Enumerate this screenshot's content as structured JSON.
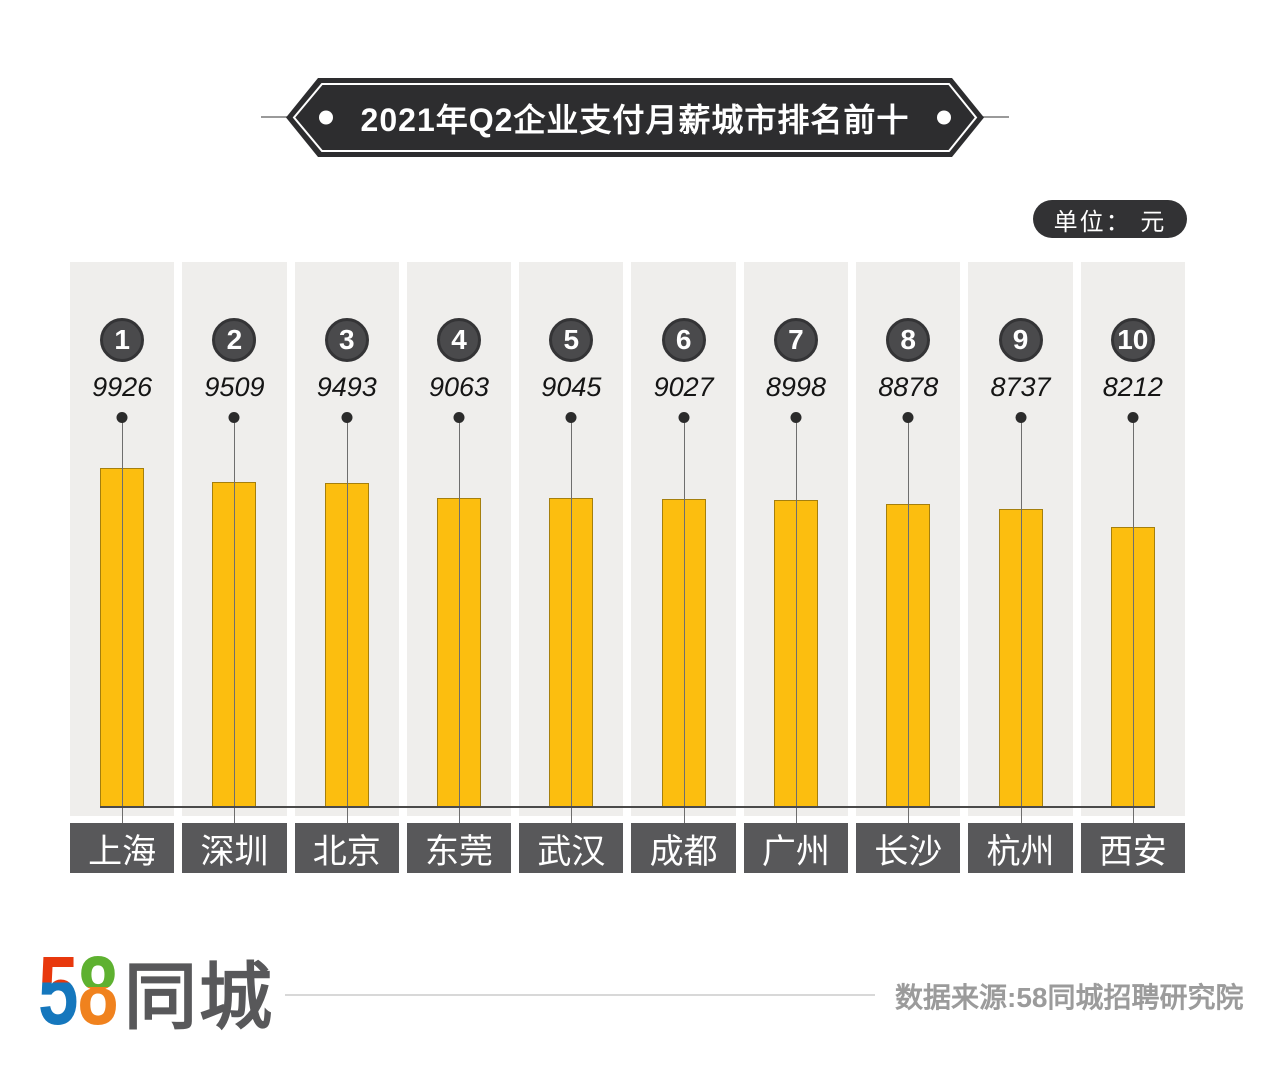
{
  "title": {
    "text": "2021年Q2企业支付月薪城市排名前十"
  },
  "unit_badge": {
    "text": "单位： 元"
  },
  "chart_data": {
    "type": "bar",
    "title": "2021年Q2企业支付月薪城市排名前十",
    "unit": "元",
    "categories": [
      "上海",
      "深圳",
      "北京",
      "东莞",
      "武汉",
      "成都",
      "广州",
      "长沙",
      "杭州",
      "西安"
    ],
    "ranks": [
      1,
      2,
      3,
      4,
      5,
      6,
      7,
      8,
      9,
      10
    ],
    "values": [
      9926,
      9509,
      9493,
      9063,
      9045,
      9027,
      8998,
      8878,
      8737,
      8212
    ],
    "ylim": [
      0,
      9926
    ],
    "legend": "none",
    "grid": false,
    "bar_color": "#FCBE0F",
    "panel_color": "#EFEEEC",
    "label_box_color": "#58585A",
    "rank_circle_color": "#4A4A4C",
    "baseline_color": "#4A4A4A"
  },
  "footer": {
    "logo_digit_5": "5",
    "logo_digit_8": "8",
    "logo_suffix": "同城",
    "source": "数据来源:58同城招聘研究院",
    "logo_colors": {
      "five_top": "#E8380D",
      "five_bottom": "#1577BD",
      "eight_top": "#5EB130",
      "eight_bottom": "#F0821E"
    }
  },
  "colors": {
    "banner_fill": "#2D2D2F",
    "pill_fill": "#323234",
    "accent_yellow": "#FCBE0F"
  }
}
